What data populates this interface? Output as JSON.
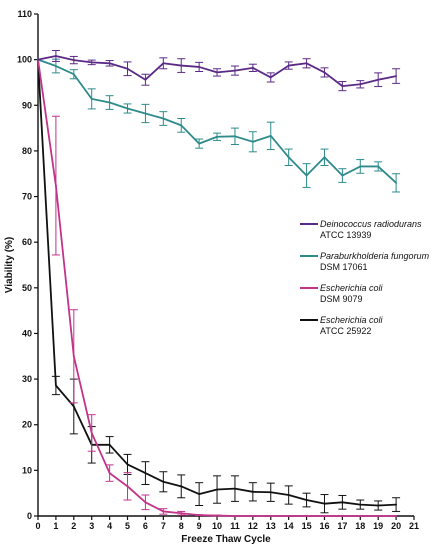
{
  "chart_data": {
    "type": "line",
    "title": "",
    "xlabel": "Freeze Thaw Cycle",
    "ylabel": "Viability (%)",
    "xlim": [
      0,
      21
    ],
    "ylim": [
      0,
      110
    ],
    "xticks": [
      0,
      1,
      2,
      3,
      4,
      5,
      6,
      7,
      8,
      9,
      10,
      11,
      12,
      13,
      14,
      15,
      16,
      17,
      18,
      19,
      20,
      21
    ],
    "yticks": [
      0,
      10,
      20,
      30,
      40,
      50,
      60,
      70,
      80,
      90,
      100,
      110
    ],
    "legend_position": "right",
    "series": [
      {
        "name_line1": "Deinococcus radiodurans",
        "name_line2": "ATCC 13939",
        "color": "#5b2a86",
        "x": [
          0,
          1,
          2,
          3,
          4,
          5,
          6,
          7,
          8,
          9,
          10,
          11,
          12,
          13,
          14,
          15,
          16,
          17,
          18,
          19,
          20
        ],
        "y": [
          100,
          100.8,
          99.9,
          99.4,
          99.2,
          98,
          95.6,
          99.2,
          98.7,
          98.4,
          97.2,
          97.6,
          98.2,
          96.1,
          98.7,
          99.2,
          97.2,
          94.2,
          94.6,
          95.6,
          96.4
        ],
        "err": [
          0,
          1.2,
          0.8,
          0.5,
          0.6,
          1.5,
          1.2,
          1.2,
          1.5,
          1.0,
          0.8,
          1.0,
          0.8,
          1.0,
          0.8,
          1.0,
          1.0,
          1.0,
          0.8,
          1.5,
          1.6
        ]
      },
      {
        "name_line1": "Paraburkholderia fungorum",
        "name_line2": "DSM 17061",
        "color": "#2e8b8b",
        "x": [
          0,
          1,
          2,
          3,
          4,
          5,
          6,
          7,
          8,
          9,
          10,
          11,
          12,
          13,
          14,
          15,
          16,
          17,
          18,
          19,
          20
        ],
        "y": [
          100,
          98.6,
          96.8,
          91.4,
          90.6,
          89.3,
          88.2,
          87.1,
          85.6,
          81.6,
          83.1,
          83.2,
          82,
          83.3,
          78.6,
          74.6,
          78.6,
          74.6,
          76.6,
          76.6,
          73
        ],
        "err": [
          0,
          1.5,
          1.0,
          2.2,
          1.5,
          1.0,
          2.0,
          1.5,
          1.5,
          1.0,
          0.8,
          1.8,
          2.2,
          3.0,
          1.8,
          2.6,
          1.8,
          1.5,
          1.5,
          1.0,
          2.0
        ]
      },
      {
        "name_line1": "Escherichia coli",
        "name_line2": "DSM 9079",
        "color": "#c2338a",
        "x": [
          0,
          1,
          2,
          3,
          4,
          5,
          6,
          7,
          8,
          9,
          10,
          11,
          12,
          13,
          14,
          15,
          16,
          17,
          18,
          19,
          20
        ],
        "y": [
          100,
          72.4,
          35,
          18.2,
          9.4,
          6.5,
          3,
          1,
          0.6,
          0.2,
          0.1,
          0,
          0,
          0,
          0,
          0,
          0,
          0,
          0,
          0,
          0
        ],
        "err": [
          0,
          15.2,
          10.2,
          4.0,
          1.8,
          3.0,
          1.6,
          0.6,
          0.4,
          0.1,
          0.1,
          0,
          0,
          0,
          0,
          0,
          0,
          0,
          0,
          0,
          0
        ]
      },
      {
        "name_line1": "Escherichia coli",
        "name_line2": "ATCC 25922",
        "color": "#111111",
        "x": [
          0,
          1,
          2,
          3,
          4,
          5,
          6,
          7,
          8,
          9,
          10,
          11,
          12,
          13,
          14,
          15,
          16,
          17,
          18,
          19,
          20
        ],
        "y": [
          100,
          28.6,
          24,
          15.6,
          15.6,
          11.3,
          9.4,
          7.5,
          6.5,
          4.8,
          5.8,
          6,
          5.3,
          5.2,
          4.6,
          3.5,
          2.7,
          3,
          2.5,
          2.3,
          2.5
        ],
        "err": [
          0,
          2.0,
          6.0,
          4.0,
          1.8,
          2.2,
          2.5,
          2.2,
          2.5,
          2.5,
          3.0,
          2.8,
          2.0,
          2.0,
          2.0,
          1.5,
          2.0,
          1.5,
          1.0,
          1.0,
          1.5
        ]
      }
    ]
  }
}
